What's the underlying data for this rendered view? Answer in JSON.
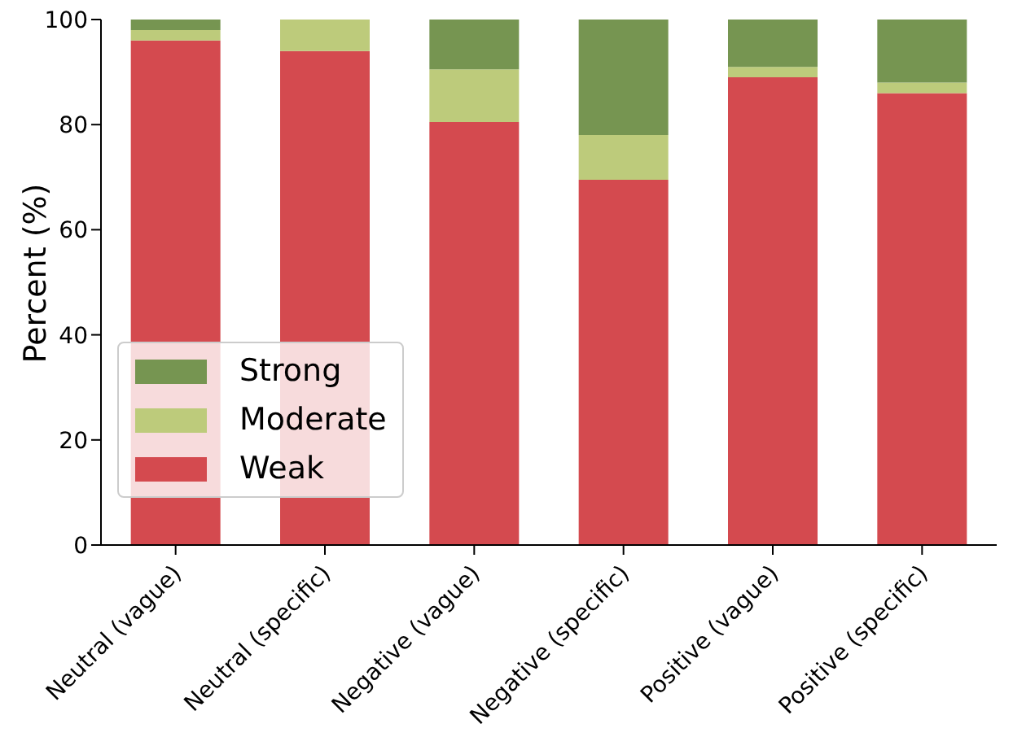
{
  "chart_data": {
    "type": "bar",
    "stacked": true,
    "ylabel": "Percent (%)",
    "categories": [
      "Neutral (vague)",
      "Neutral (specific)",
      "Negative (vague)",
      "Negative (specific)",
      "Positive (vague)",
      "Positive (specific)"
    ],
    "series": [
      {
        "name": "Weak",
        "color": "#d44a4f",
        "values": [
          96,
          94,
          80.5,
          69.5,
          89,
          86
        ]
      },
      {
        "name": "Moderate",
        "color": "#bdcb7b",
        "values": [
          2,
          6,
          10,
          8.5,
          2,
          2
        ]
      },
      {
        "name": "Strong",
        "color": "#769551",
        "values": [
          2,
          0,
          9.5,
          22,
          9,
          12
        ]
      }
    ],
    "ylim": [
      0,
      100
    ],
    "yticks": [
      0,
      20,
      40,
      60,
      80,
      100
    ],
    "grid": false,
    "legend": "bottom left"
  }
}
